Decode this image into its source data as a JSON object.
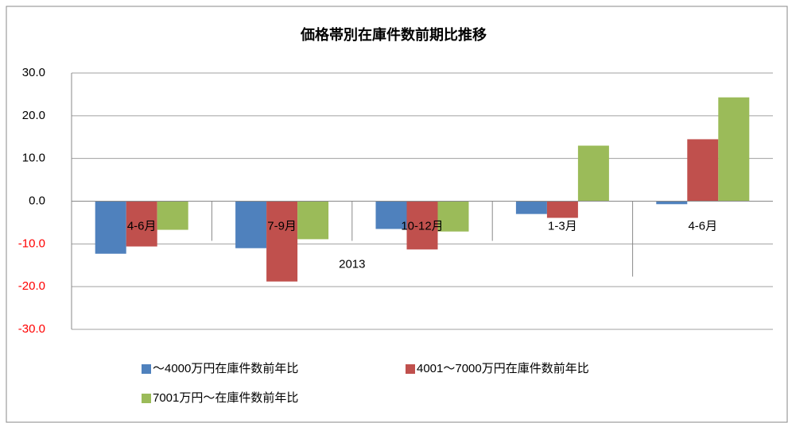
{
  "chart_data": {
    "type": "bar",
    "title": "価格帯別在庫件数前期比推移",
    "categories": [
      "4-6月",
      "7-9月",
      "10-12月",
      "1-3月",
      "4-6月"
    ],
    "category_groups": [
      {
        "label": "2013",
        "size": 4
      }
    ],
    "series": [
      {
        "name": "～4000万円在庫件数前年比",
        "color": "#4f81bd",
        "values": [
          -12.3,
          -11.0,
          -6.5,
          -3.0,
          -0.7
        ]
      },
      {
        "name": "4001～7000万円在庫件数前年比",
        "color": "#c0504d",
        "values": [
          -10.6,
          -18.8,
          -11.3,
          -3.9,
          14.5
        ]
      },
      {
        "name": "7001万円～在庫件数前年比",
        "color": "#9bbb59",
        "values": [
          -6.7,
          -8.9,
          -7.1,
          13.0,
          24.3
        ]
      }
    ],
    "ylim": [
      -30,
      30
    ],
    "yticks": [
      {
        "value": -30,
        "label": "-30.0"
      },
      {
        "value": -20,
        "label": "-20.0"
      },
      {
        "value": -10,
        "label": "-10.0"
      },
      {
        "value": 0,
        "label": "0.0"
      },
      {
        "value": 10,
        "label": "10.0"
      },
      {
        "value": 20,
        "label": "20.0"
      },
      {
        "value": 30,
        "label": "30.0"
      }
    ],
    "negative_tick_color": "#ff0000",
    "grid": true,
    "legend": "bottom"
  }
}
